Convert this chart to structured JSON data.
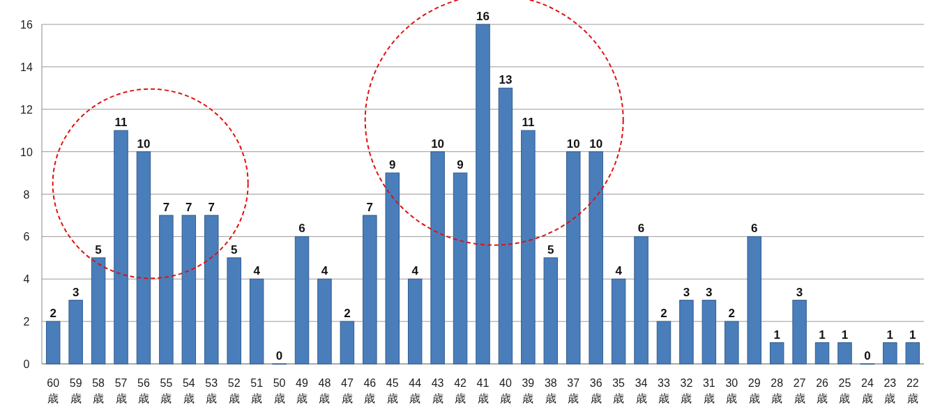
{
  "chart_data": {
    "type": "bar",
    "categories": [
      "60歳",
      "59歳",
      "58歳",
      "57歳",
      "56歳",
      "55歳",
      "54歳",
      "53歳",
      "52歳",
      "51歳",
      "50歳",
      "49歳",
      "48歳",
      "47歳",
      "46歳",
      "45歳",
      "44歳",
      "43歳",
      "42歳",
      "41歳",
      "40歳",
      "39歳",
      "38歳",
      "37歳",
      "36歳",
      "35歳",
      "34歳",
      "33歳",
      "32歳",
      "31歳",
      "30歳",
      "29歳",
      "28歳",
      "27歳",
      "26歳",
      "25歳",
      "24歳",
      "23歳",
      "22歳"
    ],
    "values": [
      2,
      3,
      5,
      11,
      10,
      7,
      7,
      7,
      5,
      4,
      0,
      6,
      4,
      2,
      7,
      9,
      4,
      10,
      9,
      16,
      13,
      11,
      5,
      10,
      10,
      4,
      6,
      2,
      3,
      3,
      2,
      6,
      1,
      3,
      1,
      1,
      0,
      1,
      1
    ],
    "color": "#4a7ebb",
    "ylim": [
      0,
      16
    ],
    "yticks": [
      0,
      2,
      4,
      6,
      8,
      10,
      12,
      14,
      16
    ],
    "grid": "y",
    "data_labels": true
  }
}
